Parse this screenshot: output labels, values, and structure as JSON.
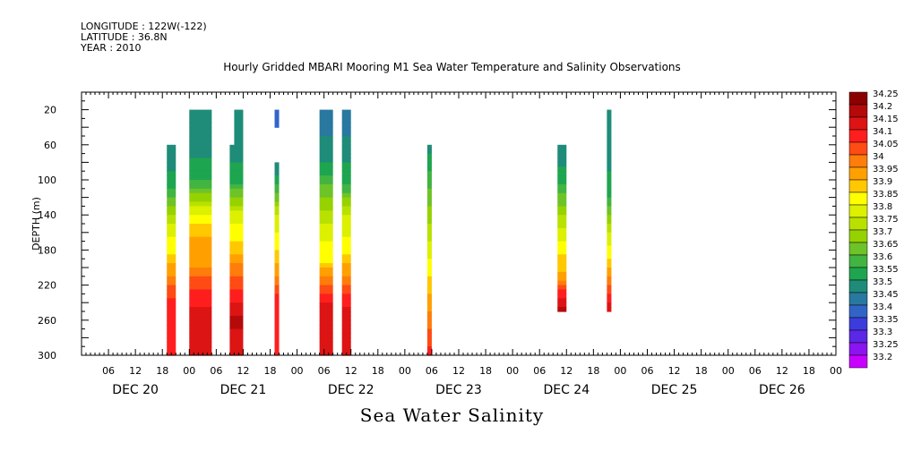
{
  "header": {
    "longitude": "LONGITUDE : 122W(-122)",
    "latitude": "LATITUDE : 36.8N",
    "year": "YEAR : 2010"
  },
  "chart_data": {
    "type": "heatmap",
    "title": "Hourly Gridded MBARI Mooring M1 Sea Water Temperature and Salinity Observations",
    "xlabel": "Sea Water Salinity",
    "ylabel": "DEPTH (m)",
    "x_hour_ticks": [
      "06",
      "12",
      "18",
      "00",
      "06",
      "12",
      "18",
      "00",
      "06",
      "12",
      "18",
      "00",
      "06",
      "12",
      "18",
      "00",
      "06",
      "12",
      "18",
      "00",
      "06",
      "12",
      "18",
      "00",
      "06",
      "12",
      "18",
      "00"
    ],
    "x_day_labels": [
      "DEC 20",
      "DEC 21",
      "DEC 22",
      "DEC 23",
      "DEC 24",
      "DEC 25",
      "DEC 26"
    ],
    "xlim_hours": [
      0,
      168
    ],
    "ylim": [
      300,
      0
    ],
    "y_ticks": [
      20,
      60,
      100,
      140,
      180,
      220,
      260,
      300
    ],
    "colorbar": {
      "levels": [
        "34.25",
        "34.2",
        "34.15",
        "34.1",
        "34.05",
        "34",
        "33.95",
        "33.9",
        "33.85",
        "33.8",
        "33.75",
        "33.7",
        "33.65",
        "33.6",
        "33.55",
        "33.5",
        "33.45",
        "33.4",
        "33.35",
        "33.3",
        "33.25",
        "33.2"
      ],
      "colors": [
        "#8b0000",
        "#b40a0a",
        "#dc1414",
        "#ff1e1e",
        "#ff4b14",
        "#ff7d0a",
        "#ffa000",
        "#ffc800",
        "#ffff00",
        "#dcf000",
        "#b9e100",
        "#96d200",
        "#6ec328",
        "#41b441",
        "#1ea550",
        "#1e8c78",
        "#2878a0",
        "#3264c8",
        "#3c3cdc",
        "#5a28e6",
        "#8c14f0",
        "#c800ff"
      ]
    },
    "profiles": [
      {
        "hour": 19,
        "width": 2,
        "top": 60,
        "bottom": 300,
        "stops": [
          [
            60,
            33.52
          ],
          [
            100,
            33.56
          ],
          [
            150,
            33.8
          ],
          [
            190,
            33.92
          ],
          [
            220,
            34.05
          ],
          [
            245,
            34.15
          ],
          [
            270,
            34.12
          ],
          [
            300,
            34.12
          ]
        ]
      },
      {
        "hour": 24,
        "width": 5,
        "top": 20,
        "bottom": 300,
        "stops": [
          [
            20,
            33.5
          ],
          [
            60,
            33.52
          ],
          [
            100,
            33.6
          ],
          [
            140,
            33.85
          ],
          [
            170,
            33.97
          ],
          [
            200,
            34.0
          ],
          [
            230,
            34.12
          ],
          [
            260,
            34.18
          ],
          [
            300,
            34.15
          ]
        ]
      },
      {
        "hour": 33,
        "width": 3,
        "top": 60,
        "bottom": 300,
        "stops": [
          [
            60,
            33.52
          ],
          [
            100,
            33.58
          ],
          [
            140,
            33.82
          ],
          [
            180,
            33.93
          ],
          [
            210,
            34.05
          ],
          [
            240,
            34.15
          ],
          [
            260,
            34.22
          ],
          [
            280,
            34.17
          ],
          [
            300,
            34.17
          ]
        ]
      },
      {
        "hour": 34,
        "width": 2,
        "top": 20,
        "bottom": 60,
        "stops": [
          [
            20,
            33.5
          ],
          [
            60,
            33.5
          ]
        ]
      },
      {
        "hour": 43,
        "width": 1,
        "top": 20,
        "bottom": 40,
        "stops": [
          [
            20,
            33.42
          ],
          [
            40,
            33.42
          ]
        ]
      },
      {
        "hour": 43,
        "width": 1,
        "top": 80,
        "bottom": 300,
        "stops": [
          [
            80,
            33.52
          ],
          [
            100,
            33.56
          ],
          [
            140,
            33.8
          ],
          [
            190,
            33.92
          ],
          [
            230,
            34.1
          ],
          [
            300,
            34.12
          ]
        ]
      },
      {
        "hour": 53,
        "width": 3,
        "top": 20,
        "bottom": 300,
        "stops": [
          [
            20,
            33.45
          ],
          [
            50,
            33.5
          ],
          [
            80,
            33.55
          ],
          [
            120,
            33.7
          ],
          [
            160,
            33.83
          ],
          [
            190,
            33.88
          ],
          [
            220,
            34.05
          ],
          [
            250,
            34.2
          ],
          [
            300,
            34.15
          ]
        ]
      },
      {
        "hour": 58,
        "width": 2,
        "top": 20,
        "bottom": 300,
        "stops": [
          [
            20,
            33.45
          ],
          [
            60,
            33.52
          ],
          [
            100,
            33.58
          ],
          [
            140,
            33.8
          ],
          [
            180,
            33.88
          ],
          [
            220,
            34.05
          ],
          [
            250,
            34.18
          ],
          [
            300,
            34.15
          ]
        ]
      },
      {
        "hour": 77,
        "width": 1,
        "top": 60,
        "bottom": 300,
        "stops": [
          [
            60,
            33.52
          ],
          [
            300,
            34.12
          ]
        ]
      },
      {
        "hour": 106,
        "width": 2,
        "top": 60,
        "bottom": 250,
        "stops": [
          [
            60,
            33.5
          ],
          [
            100,
            33.58
          ],
          [
            140,
            33.75
          ],
          [
            180,
            33.88
          ],
          [
            210,
            33.97
          ],
          [
            230,
            34.12
          ],
          [
            250,
            34.22
          ]
        ]
      },
      {
        "hour": 117,
        "width": 1,
        "top": 20,
        "bottom": 250,
        "stops": [
          [
            20,
            33.5
          ],
          [
            80,
            33.53
          ],
          [
            120,
            33.6
          ],
          [
            160,
            33.8
          ],
          [
            190,
            33.9
          ],
          [
            220,
            34.05
          ],
          [
            250,
            34.2
          ]
        ]
      }
    ]
  }
}
